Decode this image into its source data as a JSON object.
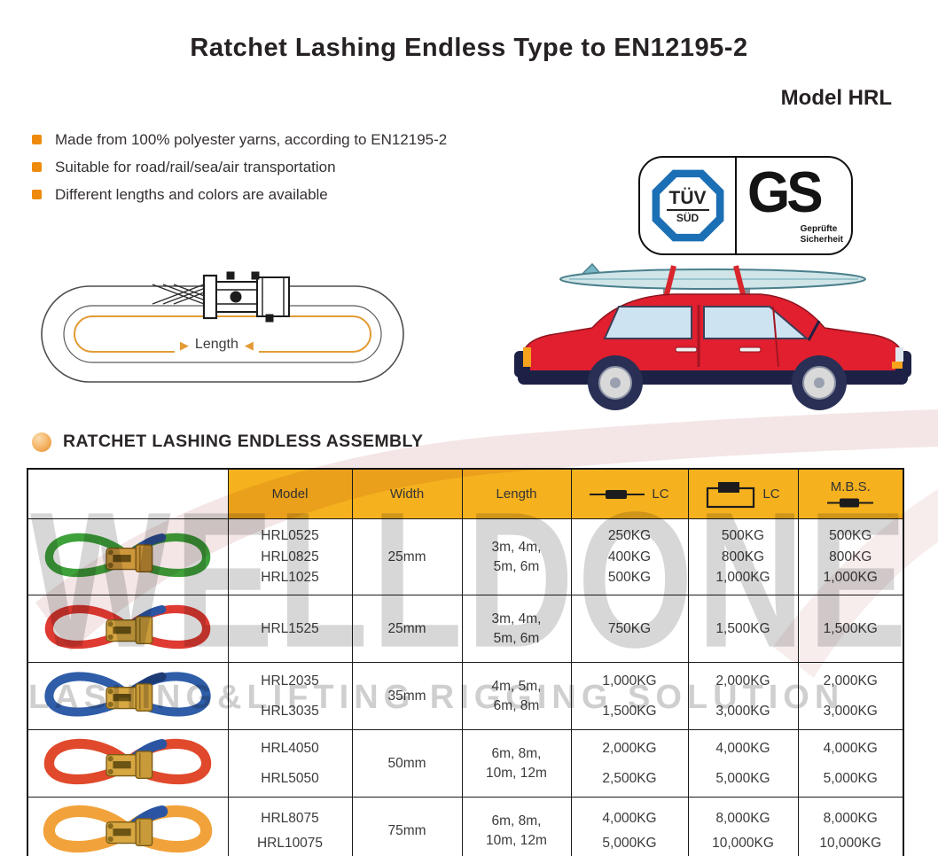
{
  "header": {
    "title": "Ratchet Lashing Endless Type to EN12195-2",
    "model": "Model HRL"
  },
  "features": [
    "Made from 100% polyester yarns, according to EN12195-2",
    "Suitable for road/rail/sea/air transportation",
    "Different lengths and colors are available"
  ],
  "certifications": {
    "tuv_line1": "TÜV",
    "tuv_line2": "SÜD",
    "gs_letters": "GS",
    "gs_caption": [
      "Geprüfte",
      "Sicherheit"
    ]
  },
  "diagram": {
    "length_label": "Length"
  },
  "section_title": "RATCHET LASHING ENDLESS ASSEMBLY",
  "table": {
    "columns": {
      "model": "Model",
      "width": "Width",
      "length": "Length",
      "lc_straight": "LC",
      "lc_loop": "LC",
      "mbs": "M.B.S."
    },
    "rows": [
      {
        "strap": "green-endless-ratchet-strap",
        "strap_color": "#3ea13a",
        "tip_color": "#2b55a2",
        "models": [
          "HRL0525",
          "HRL0825",
          "HRL1025"
        ],
        "width": "25mm",
        "length": [
          "3m, 4m,",
          "5m, 6m"
        ],
        "lc_straight": [
          "250KG",
          "400KG",
          "500KG"
        ],
        "lc_loop": [
          "500KG",
          "800KG",
          "1,000KG"
        ],
        "mbs": [
          "500KG",
          "800KG",
          "1,000KG"
        ]
      },
      {
        "strap": "red-endless-ratchet-strap",
        "strap_color": "#df3b33",
        "tip_color": "#2b55a2",
        "models": [
          "HRL1525"
        ],
        "width": "25mm",
        "length": [
          "3m, 4m,",
          "5m, 6m"
        ],
        "lc_straight": [
          "750KG"
        ],
        "lc_loop": [
          "1,500KG"
        ],
        "mbs": [
          "1,500KG"
        ]
      },
      {
        "strap": "blue-endless-ratchet-strap",
        "strap_color": "#2f5da8",
        "tip_color": "#1c3a74",
        "models": [
          "HRL2035",
          "HRL3035"
        ],
        "width": "35mm",
        "length": [
          "4m, 5m,",
          "6m, 8m"
        ],
        "lc_straight": [
          "1,000KG",
          "1,500KG"
        ],
        "lc_loop": [
          "2,000KG",
          "3,000KG"
        ],
        "mbs": [
          "2,000KG",
          "3,000KG"
        ]
      },
      {
        "strap": "orange-red-endless-ratchet-strap",
        "strap_color": "#e0492b",
        "tip_color": "#2b55a2",
        "models": [
          "HRL4050",
          "HRL5050"
        ],
        "width": "50mm",
        "length": [
          "6m, 8m,",
          "10m, 12m"
        ],
        "lc_straight": [
          "2,000KG",
          "2,500KG"
        ],
        "lc_loop": [
          "4,000KG",
          "5,000KG"
        ],
        "mbs": [
          "4,000KG",
          "5,000KG"
        ]
      },
      {
        "strap": "yellow-endless-ratchet-strap",
        "strap_color": "#f2a23a",
        "tip_color": "#2b55a2",
        "models": [
          "HRL8075",
          "HRL10075"
        ],
        "width": "75mm",
        "length": [
          "6m, 8m,",
          "10m, 12m"
        ],
        "lc_straight": [
          "4,000KG",
          "5,000KG"
        ],
        "lc_loop": [
          "8,000KG",
          "10,000KG"
        ],
        "mbs": [
          "8,000KG",
          "10,000KG"
        ]
      }
    ]
  },
  "watermark": {
    "brand": "WELLDONE",
    "slogan": "LASHING&LIFTING RIGGING SOLUTION"
  },
  "colors": {
    "accent_yellow": "#f5b11e",
    "bullet_orange": "#ee8b0f",
    "tuv_blue": "#1b6fb5",
    "car_red": "#e11f2e",
    "watermark_pink": "#eed6d6"
  }
}
